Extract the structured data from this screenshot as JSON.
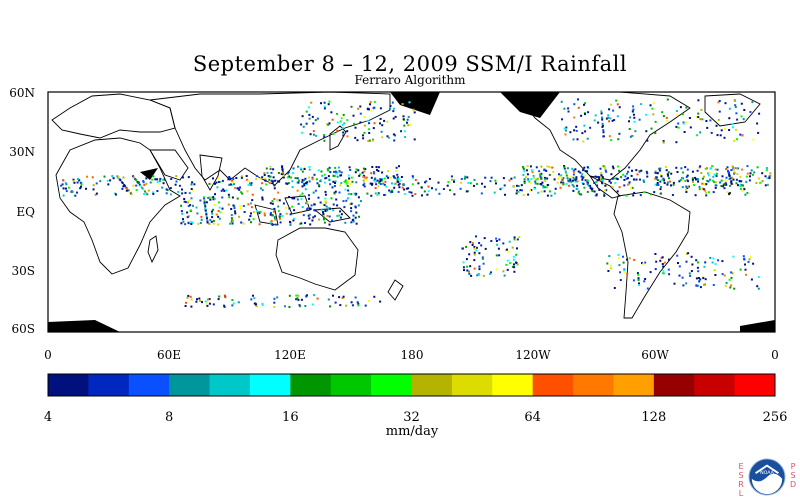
{
  "title": "September 8 – 12, 2009 SSM/I Rainfall",
  "subtitle": "Ferraro Algorithm",
  "lat_labels": [
    "60N",
    "30N",
    "EQ",
    "30S",
    "60S"
  ],
  "lon_labels": [
    "0",
    "60E",
    "120E",
    "180",
    "120W",
    "60W",
    "0"
  ],
  "colorbar": {
    "colors": [
      "#00107d",
      "#0028c0",
      "#0a50ff",
      "#00969b",
      "#00c8c8",
      "#00ffff",
      "#009600",
      "#00c800",
      "#00ff00",
      "#b4b400",
      "#dcdc00",
      "#ffff00",
      "#ff5000",
      "#ff7800",
      "#ffa000",
      "#960000",
      "#c80000",
      "#ff0000"
    ],
    "tick_labels": [
      "4",
      "8",
      "16",
      "32",
      "64",
      "128",
      "256"
    ],
    "unit": "mm/day"
  },
  "logo": {
    "org": "NOAA",
    "left_letters": [
      "E",
      "S",
      "R",
      "L"
    ],
    "right_letters": [
      "P",
      "S",
      "D"
    ]
  }
}
